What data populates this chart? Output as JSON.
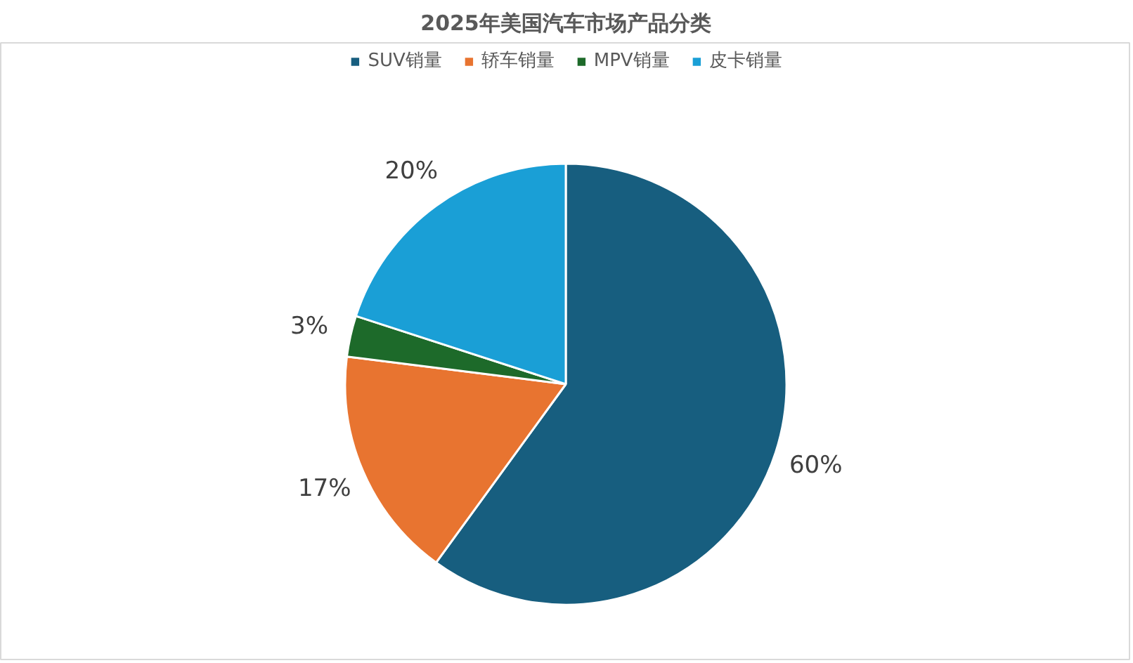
{
  "chart_data": {
    "type": "pie",
    "title": "2025年美国汽车市场产品分类",
    "categories": [
      "SUV销量",
      "轿车销量",
      "MPV销量",
      "皮卡销量"
    ],
    "values": [
      60,
      17,
      3,
      20
    ],
    "colors": [
      "#175e7f",
      "#e87430",
      "#1d6a2a",
      "#1a9fd6"
    ],
    "value_labels": [
      "60%",
      "17%",
      "3%",
      "20%"
    ],
    "legend": "top"
  }
}
